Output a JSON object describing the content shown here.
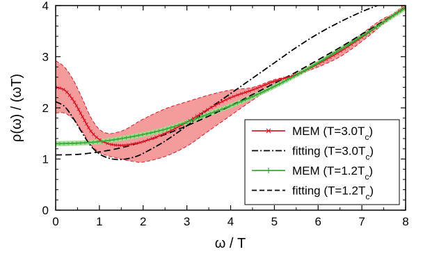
{
  "chart_data": {
    "type": "line",
    "title": "",
    "xlabel": "ω / T",
    "ylabel": "ρ(ω) / (ωT)",
    "xlim": [
      0,
      8
    ],
    "ylim": [
      0,
      4
    ],
    "xticks": [
      "0",
      "1",
      "2",
      "3",
      "4",
      "5",
      "6",
      "7",
      "8"
    ],
    "yticks": [
      "0",
      "1",
      "2",
      "3",
      "4"
    ],
    "grid": false,
    "legend_position": "right",
    "legend": [
      {
        "text": "MEM (T=3.0T",
        "sub": "c",
        "tail": ")"
      },
      {
        "text": "fitting (T=3.0T",
        "sub": "c",
        "tail": ")"
      },
      {
        "text": "MEM (T=1.2T",
        "sub": "c",
        "tail": ")"
      },
      {
        "text": "fitting (T=1.2T",
        "sub": "c",
        "tail": ")"
      }
    ],
    "colors": {
      "mem30_line": "#d81b2a",
      "mem30_band": "#f28b8b",
      "mem12_line": "#3aa83a",
      "mem12_band": "#9fde8f",
      "fit_line": "#000000"
    },
    "series": [
      {
        "name": "MEM (T=3.0Tc)",
        "style": "solid-markers",
        "x": [
          0,
          0.2,
          0.4,
          0.6,
          0.8,
          1.0,
          1.2,
          1.4,
          1.6,
          1.8,
          2.0,
          2.5,
          3.0,
          3.5,
          4.0,
          4.5,
          5.0,
          5.5,
          6.0,
          6.5,
          7.0,
          7.5,
          8.0
        ],
        "y": [
          2.4,
          2.35,
          2.15,
          1.85,
          1.55,
          1.38,
          1.3,
          1.27,
          1.27,
          1.3,
          1.34,
          1.5,
          1.72,
          1.98,
          2.2,
          2.35,
          2.52,
          2.65,
          2.86,
          3.1,
          3.38,
          3.68,
          3.98
        ]
      },
      {
        "name": "MEM (T=3.0Tc) upper",
        "style": "band-upper",
        "x": [
          0,
          0.2,
          0.4,
          0.6,
          0.8,
          1.0,
          1.2,
          1.4,
          1.6,
          1.8,
          2.0,
          2.5,
          3.0,
          3.5,
          4.0,
          4.5,
          5.0,
          5.5,
          6.0,
          6.5,
          7.0,
          7.5,
          8.0
        ],
        "y": [
          2.92,
          2.8,
          2.55,
          2.2,
          1.82,
          1.58,
          1.5,
          1.52,
          1.58,
          1.68,
          1.78,
          1.98,
          2.12,
          2.25,
          2.35,
          2.4,
          2.55,
          2.65,
          2.8,
          3.0,
          3.3,
          3.65,
          4.05
        ]
      },
      {
        "name": "MEM (T=3.0Tc) lower",
        "style": "band-lower",
        "x": [
          0,
          0.2,
          0.4,
          0.6,
          0.8,
          1.0,
          1.2,
          1.4,
          1.6,
          1.8,
          2.0,
          2.5,
          3.0,
          3.5,
          4.0,
          4.5,
          5.0,
          5.5,
          6.0,
          6.5,
          7.0,
          7.5,
          8.0
        ],
        "y": [
          1.9,
          1.9,
          1.78,
          1.55,
          1.28,
          1.13,
          1.06,
          1.02,
          0.98,
          0.95,
          0.94,
          1.05,
          1.25,
          1.55,
          1.85,
          2.15,
          2.42,
          2.65,
          2.9,
          3.15,
          3.45,
          3.75,
          3.92
        ]
      },
      {
        "name": "fitting (T=3.0Tc)",
        "style": "dashdot",
        "x": [
          0,
          0.2,
          0.4,
          0.6,
          0.8,
          1.0,
          1.2,
          1.4,
          1.6,
          1.8,
          2.0,
          2.5,
          3.0,
          3.5,
          4.0,
          4.5,
          5.0,
          5.5,
          6.0,
          6.5,
          7.0,
          7.5,
          8.0
        ],
        "y": [
          2.12,
          2.03,
          1.8,
          1.52,
          1.26,
          1.1,
          1.02,
          0.99,
          1.0,
          1.04,
          1.11,
          1.35,
          1.65,
          1.98,
          2.28,
          2.58,
          2.88,
          3.18,
          3.45,
          3.68,
          3.88,
          4.05,
          4.22
        ]
      },
      {
        "name": "MEM (T=1.2Tc)",
        "style": "solid-markers",
        "x": [
          0,
          0.5,
          1.0,
          1.5,
          2.0,
          2.5,
          3.0,
          3.5,
          4.0,
          4.5,
          5.0,
          5.5,
          6.0,
          6.5,
          7.0,
          7.5,
          8.0
        ],
        "y": [
          1.3,
          1.31,
          1.34,
          1.4,
          1.48,
          1.58,
          1.72,
          1.88,
          2.04,
          2.22,
          2.42,
          2.64,
          2.88,
          3.14,
          3.4,
          3.68,
          3.96
        ]
      },
      {
        "name": "MEM (T=1.2Tc) upper",
        "style": "band-upper",
        "x": [
          0,
          0.5,
          1.0,
          1.5,
          2.0,
          2.5,
          3.0,
          3.5,
          4.0,
          4.5,
          5.0,
          5.5,
          6.0,
          6.5,
          7.0,
          7.5,
          8.0
        ],
        "y": [
          1.35,
          1.36,
          1.39,
          1.45,
          1.53,
          1.63,
          1.77,
          1.93,
          2.09,
          2.27,
          2.47,
          2.69,
          2.93,
          3.19,
          3.45,
          3.73,
          4.02
        ]
      },
      {
        "name": "MEM (T=1.2Tc) lower",
        "style": "band-lower",
        "x": [
          0,
          0.5,
          1.0,
          1.5,
          2.0,
          2.5,
          3.0,
          3.5,
          4.0,
          4.5,
          5.0,
          5.5,
          6.0,
          6.5,
          7.0,
          7.5,
          8.0
        ],
        "y": [
          1.25,
          1.26,
          1.29,
          1.35,
          1.43,
          1.53,
          1.67,
          1.83,
          1.99,
          2.17,
          2.37,
          2.59,
          2.83,
          3.09,
          3.35,
          3.63,
          3.9
        ]
      },
      {
        "name": "fitting (T=1.2Tc)",
        "style": "dashed",
        "x": [
          0,
          0.5,
          1.0,
          1.5,
          2.0,
          2.5,
          3.0,
          3.5,
          4.0,
          4.5,
          5.0,
          5.5,
          6.0,
          6.5,
          7.0,
          7.5,
          8.0
        ],
        "y": [
          1.08,
          1.09,
          1.14,
          1.22,
          1.34,
          1.48,
          1.65,
          1.84,
          2.04,
          2.26,
          2.48,
          2.7,
          2.94,
          3.18,
          3.44,
          3.7,
          3.96
        ]
      }
    ]
  }
}
